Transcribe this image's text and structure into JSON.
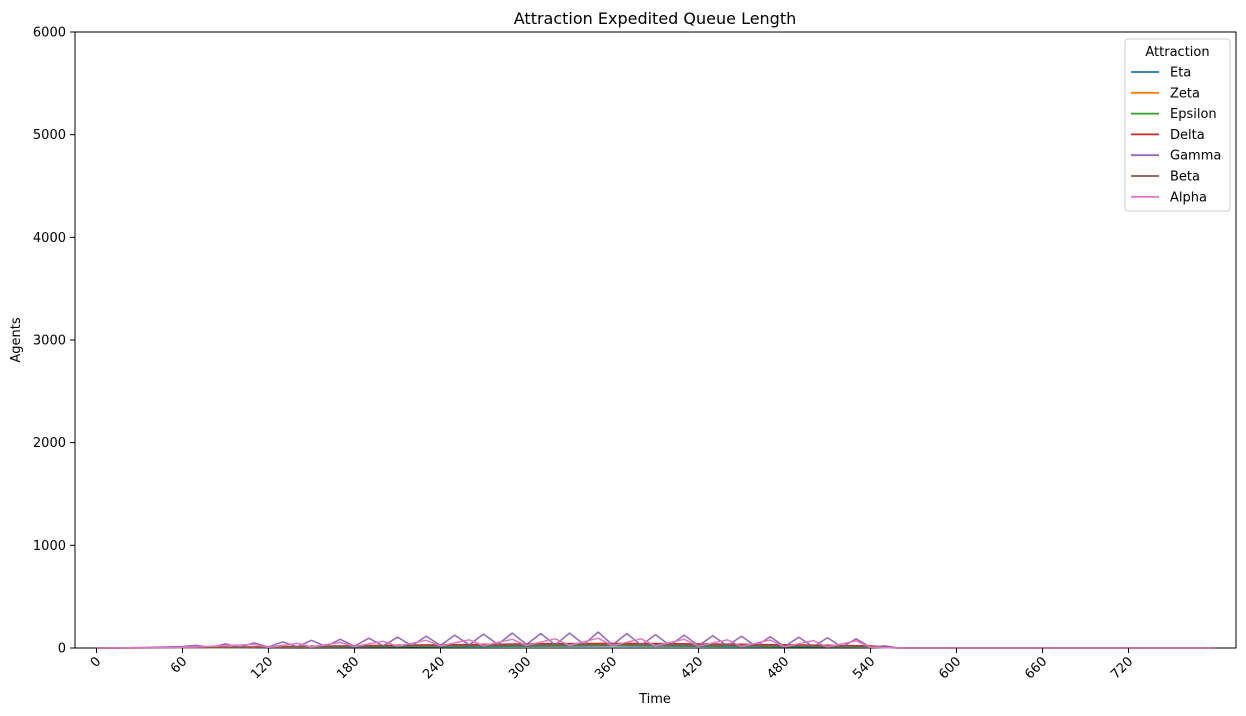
{
  "chart_data": {
    "type": "line",
    "title": "Attraction Expedited Queue Length",
    "xlabel": "Time",
    "ylabel": "Agents",
    "xlim": [
      -15,
      795
    ],
    "ylim": [
      0,
      6000
    ],
    "x_ticks": [
      0,
      60,
      120,
      180,
      240,
      300,
      360,
      420,
      480,
      540,
      600,
      660,
      720
    ],
    "y_ticks": [
      0,
      1000,
      2000,
      3000,
      4000,
      5000,
      6000
    ],
    "legend": {
      "title": "Attraction",
      "placement": "top-right"
    },
    "grid": false,
    "series": [
      {
        "name": "Eta",
        "color": "#1f77b4",
        "x": [
          0,
          60,
          120,
          180,
          240,
          300,
          360,
          420,
          480,
          540,
          560,
          600,
          660,
          720,
          780
        ],
        "values": [
          0,
          2,
          6,
          10,
          14,
          18,
          20,
          18,
          14,
          8,
          0,
          0,
          0,
          0,
          0
        ]
      },
      {
        "name": "Zeta",
        "color": "#ff7f0e",
        "x": [
          0,
          60,
          120,
          180,
          240,
          300,
          360,
          420,
          480,
          540,
          560,
          600,
          660,
          720,
          780
        ],
        "values": [
          0,
          3,
          8,
          14,
          20,
          25,
          28,
          25,
          20,
          12,
          0,
          0,
          0,
          0,
          0
        ]
      },
      {
        "name": "Epsilon",
        "color": "#2ca02c",
        "x": [
          0,
          60,
          120,
          180,
          240,
          300,
          360,
          420,
          480,
          540,
          560,
          600,
          660,
          720,
          780
        ],
        "values": [
          0,
          2,
          7,
          12,
          18,
          22,
          25,
          22,
          18,
          10,
          0,
          0,
          0,
          0,
          0
        ]
      },
      {
        "name": "Delta",
        "color": "#d62728",
        "x": [
          0,
          60,
          120,
          180,
          240,
          300,
          360,
          420,
          480,
          540,
          560,
          600,
          660,
          720,
          780
        ],
        "values": [
          0,
          4,
          12,
          22,
          32,
          40,
          45,
          40,
          32,
          20,
          0,
          0,
          0,
          0,
          0
        ]
      },
      {
        "name": "Gamma",
        "color": "#9467bd",
        "x": [
          0,
          20,
          40,
          60,
          70,
          80,
          90,
          100,
          110,
          120,
          130,
          140,
          150,
          160,
          170,
          180,
          190,
          200,
          210,
          220,
          230,
          240,
          250,
          260,
          270,
          280,
          290,
          300,
          310,
          320,
          330,
          340,
          350,
          360,
          370,
          380,
          390,
          400,
          410,
          420,
          430,
          440,
          450,
          460,
          470,
          480,
          490,
          500,
          510,
          520,
          530,
          540,
          550,
          560,
          600,
          660,
          720,
          780
        ],
        "values": [
          0,
          2,
          8,
          15,
          25,
          5,
          40,
          8,
          50,
          10,
          60,
          12,
          75,
          15,
          85,
          18,
          95,
          20,
          105,
          22,
          115,
          25,
          125,
          30,
          135,
          35,
          145,
          35,
          140,
          30,
          145,
          35,
          155,
          30,
          140,
          28,
          130,
          25,
          125,
          22,
          120,
          20,
          115,
          18,
          110,
          15,
          105,
          12,
          100,
          10,
          90,
          8,
          20,
          0,
          0,
          0,
          0,
          0
        ]
      },
      {
        "name": "Beta",
        "color": "#8c564b",
        "x": [
          0,
          60,
          120,
          180,
          240,
          300,
          360,
          420,
          480,
          540,
          560,
          600,
          660,
          720,
          780
        ],
        "values": [
          0,
          3,
          9,
          16,
          24,
          30,
          34,
          30,
          24,
          14,
          0,
          0,
          0,
          0,
          0
        ]
      },
      {
        "name": "Alpha",
        "color": "#e377c2",
        "x": [
          0,
          60,
          110,
          120,
          140,
          150,
          170,
          180,
          200,
          210,
          230,
          240,
          260,
          270,
          290,
          300,
          320,
          330,
          350,
          360,
          380,
          390,
          410,
          420,
          440,
          450,
          470,
          480,
          500,
          510,
          530,
          540,
          560,
          600,
          660,
          720,
          780
        ],
        "values": [
          0,
          5,
          35,
          8,
          45,
          10,
          55,
          15,
          65,
          18,
          75,
          20,
          80,
          22,
          85,
          25,
          90,
          25,
          95,
          22,
          90,
          20,
          85,
          18,
          80,
          15,
          78,
          12,
          72,
          10,
          70,
          8,
          0,
          0,
          0,
          0,
          0
        ]
      }
    ]
  }
}
